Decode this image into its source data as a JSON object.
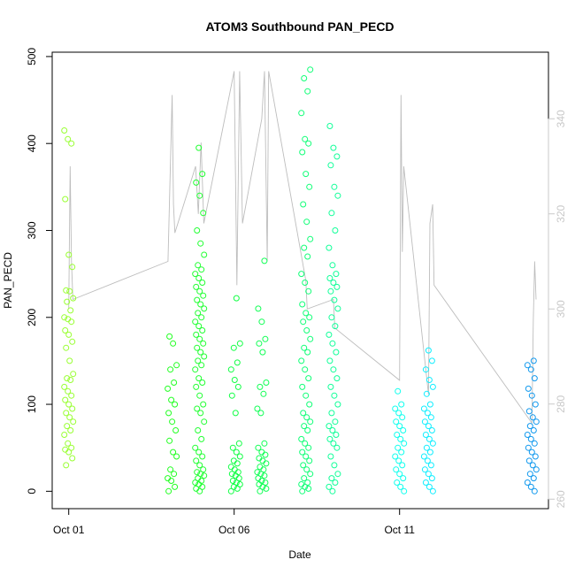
{
  "chart_data": {
    "type": "scatter",
    "title": "ATOM3 Southbound PAN_PECD",
    "xlabel": "Date",
    "ylabel": "PAN_PECD",
    "xlim": [
      "2016-09-30T12:00",
      "2016-10-15T12:00"
    ],
    "ylim": [
      -20,
      505
    ],
    "y_ticks": [
      0,
      100,
      200,
      300,
      400,
      500
    ],
    "x_ticks": [
      {
        "date": "2016-10-01",
        "label": "Oct 01"
      },
      {
        "date": "2016-10-06",
        "label": "Oct 06"
      },
      {
        "date": "2016-10-11",
        "label": "Oct 11"
      }
    ],
    "right_axis": {
      "ticks": [
        260,
        280,
        300,
        320,
        340
      ],
      "ylim": [
        258,
        354
      ],
      "color": "#c8c8c8"
    },
    "grid": false,
    "clusters": [
      {
        "time": "2016-10-01T00:00",
        "color": "#99ff33",
        "values": [
          415,
          405,
          400,
          336,
          272,
          258,
          231,
          230,
          222,
          218,
          208,
          200,
          198,
          195,
          185,
          180,
          172,
          165,
          150,
          135,
          130,
          128,
          120,
          115,
          110,
          105,
          100,
          95,
          90,
          85,
          80,
          75,
          70,
          65,
          55,
          50,
          48,
          45,
          38,
          30
        ]
      },
      {
        "time": "2016-10-04T03:00",
        "color": "#22ff22",
        "values": [
          178,
          170,
          145,
          140,
          125,
          118,
          105,
          100,
          90,
          80,
          70,
          58,
          45,
          40,
          25,
          20,
          15,
          12,
          5,
          0
        ]
      },
      {
        "time": "2016-10-04T23:00",
        "color": "#22ff33",
        "values": [
          395,
          365,
          355,
          340,
          320,
          300,
          285,
          272,
          260,
          255,
          250,
          245,
          240,
          235,
          230,
          225,
          220,
          215,
          210,
          205,
          200,
          195,
          190,
          185,
          180,
          175,
          170,
          165,
          160,
          155,
          150,
          145,
          140,
          130,
          125,
          120,
          110,
          100,
          95,
          90,
          80,
          70,
          60,
          50,
          45,
          40,
          35,
          30,
          25,
          22,
          20,
          18,
          15,
          12,
          10,
          8,
          5,
          3,
          0
        ]
      },
      {
        "time": "2016-10-06T01:00",
        "color": "#11ff44",
        "values": [
          222,
          170,
          165,
          148,
          140,
          128,
          120,
          110,
          90,
          55,
          50,
          45,
          40,
          35,
          32,
          28,
          25,
          22,
          20,
          18,
          15,
          12,
          10,
          8,
          5,
          3,
          0
        ]
      },
      {
        "time": "2016-10-06T20:00",
        "color": "#11ff55",
        "values": [
          265,
          210,
          195,
          175,
          170,
          160,
          125,
          120,
          112,
          95,
          90,
          55,
          50,
          45,
          42,
          38,
          35,
          32,
          28,
          25,
          22,
          20,
          18,
          15,
          12,
          10,
          8,
          5,
          3,
          0
        ]
      },
      {
        "time": "2016-10-08T04:00",
        "color": "#11ff77",
        "values": [
          485,
          475,
          460,
          435,
          405,
          400,
          390,
          365,
          350,
          330,
          310,
          290,
          280,
          270,
          250,
          240,
          230,
          215,
          205,
          200,
          195,
          185,
          175,
          165,
          160,
          150,
          140,
          130,
          120,
          110,
          100,
          90,
          85,
          80,
          75,
          70,
          60,
          55,
          50,
          45,
          40,
          35,
          30,
          25,
          20,
          15,
          10,
          8,
          5,
          3,
          0
        ]
      },
      {
        "time": "2016-10-09T00:00",
        "color": "#11ff99",
        "values": [
          420,
          395,
          385,
          375,
          350,
          340,
          320,
          300,
          280,
          260,
          250,
          245,
          240,
          235,
          230,
          220,
          210,
          200,
          190,
          180,
          170,
          160,
          150,
          140,
          130,
          120,
          110,
          100,
          90,
          80,
          75,
          70,
          65,
          60,
          55,
          50,
          40,
          30,
          20,
          15,
          10,
          5,
          0
        ]
      },
      {
        "time": "2016-10-11T00:00",
        "color": "#11ffee",
        "values": [
          115,
          100,
          95,
          90,
          85,
          80,
          75,
          70,
          65,
          60,
          55,
          50,
          45,
          40,
          35,
          30,
          25,
          20,
          15,
          10,
          5,
          0
        ]
      },
      {
        "time": "2016-10-11T21:00",
        "color": "#11eeff",
        "values": [
          162,
          150,
          140,
          128,
          120,
          112,
          100,
          95,
          90,
          85,
          80,
          75,
          70,
          65,
          60,
          55,
          50,
          45,
          40,
          35,
          30,
          25,
          20,
          15,
          10,
          5,
          0
        ]
      },
      {
        "time": "2016-10-15T00:00",
        "color": "#1199ee",
        "values": [
          150,
          145,
          140,
          130,
          118,
          110,
          100,
          92,
          85,
          80,
          75,
          70,
          65,
          60,
          55,
          50,
          45,
          40,
          35,
          30,
          25,
          20,
          15,
          10,
          5,
          0
        ]
      }
    ],
    "gray_line": {
      "color": "#bdbdbd",
      "axis": "right",
      "points": [
        [
          "2016-10-01T00:00",
          300
        ],
        [
          "2016-10-01T01:00",
          330
        ],
        [
          "2016-10-01T02:00",
          310
        ],
        [
          "2016-10-01T03:00",
          302
        ],
        [
          "2016-10-04T00:00",
          310
        ],
        [
          "2016-10-04T03:00",
          345
        ],
        [
          "2016-10-04T04:00",
          322
        ],
        [
          "2016-10-04T05:00",
          316
        ],
        [
          "2016-10-04T20:00",
          330
        ],
        [
          "2016-10-04T22:00",
          320
        ],
        [
          "2016-10-05T00:00",
          335
        ],
        [
          "2016-10-05T02:00",
          318
        ],
        [
          "2016-10-06T00:00",
          350
        ],
        [
          "2016-10-06T02:00",
          305
        ],
        [
          "2016-10-06T04:00",
          350
        ],
        [
          "2016-10-06T06:00",
          318
        ],
        [
          "2016-10-06T20:00",
          340
        ],
        [
          "2016-10-06T22:00",
          350
        ],
        [
          "2016-10-07T00:00",
          310
        ],
        [
          "2016-10-07T01:00",
          350
        ],
        [
          "2016-10-08T04:00",
          306
        ],
        [
          "2016-10-08T05:00",
          300
        ],
        [
          "2016-10-09T00:00",
          302
        ],
        [
          "2016-10-09T01:00",
          296
        ],
        [
          "2016-10-11T00:00",
          285
        ],
        [
          "2016-10-11T01:00",
          345
        ],
        [
          "2016-10-11T02:00",
          312
        ],
        [
          "2016-10-11T03:00",
          330
        ],
        [
          "2016-10-11T21:00",
          282
        ],
        [
          "2016-10-11T22:00",
          318
        ],
        [
          "2016-10-12T00:00",
          322
        ],
        [
          "2016-10-12T01:00",
          305
        ],
        [
          "2016-10-15T00:00",
          276
        ],
        [
          "2016-10-15T01:00",
          298
        ],
        [
          "2016-10-15T02:00",
          310
        ],
        [
          "2016-10-15T03:00",
          302
        ]
      ]
    }
  }
}
